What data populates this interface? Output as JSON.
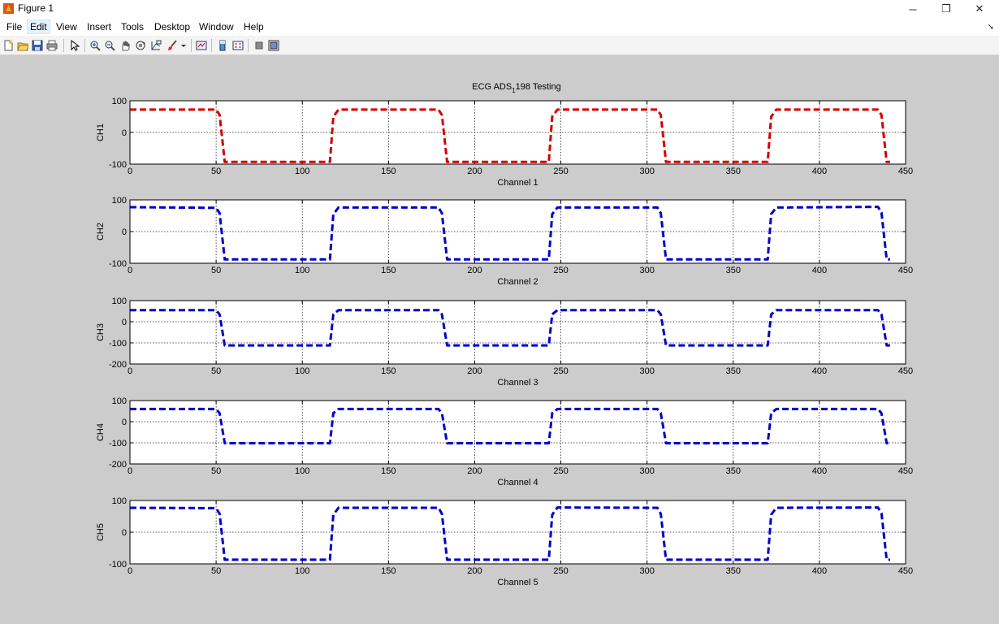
{
  "window": {
    "title": "Figure 1",
    "minimize": "─",
    "maximize": "❐",
    "close": "✕"
  },
  "menu": [
    "File",
    "Edit",
    "View",
    "Insert",
    "Tools",
    "Desktop",
    "Window",
    "Help"
  ],
  "menu_arrow": "➘",
  "toolbar": {
    "groups": [
      [
        "new-figure-icon",
        "open-file-icon",
        "save-icon",
        "print-icon"
      ],
      [
        "edit-plot-icon"
      ],
      [
        "zoom-in-icon",
        "zoom-out-icon",
        "pan-icon",
        "rotate-3d-icon",
        "data-cursor-icon",
        "brush-icon",
        "dropdown-arrow-icon"
      ],
      [
        "link-plot-icon"
      ],
      [
        "insert-colorbar-icon",
        "insert-legend-icon"
      ],
      [
        "hide-plot-tools-icon",
        "show-plot-tools-icon"
      ]
    ]
  },
  "figure": {
    "title_main": "ECG ADS",
    "title_sub": "1",
    "title_rest": "198 Testing"
  },
  "chart_data": [
    {
      "type": "line",
      "ylabel": "CH1",
      "xlabel": "Channel 1",
      "xlim": [
        0,
        450
      ],
      "ylim": [
        -100,
        100
      ],
      "xticks": [
        0,
        50,
        100,
        150,
        200,
        250,
        300,
        350,
        400,
        450
      ],
      "yticks": [
        100,
        0,
        -100
      ],
      "line_style": "dashed",
      "color": "#d40000",
      "grid": true,
      "series": [
        {
          "x": [
            0,
            50,
            52,
            55,
            116,
            118,
            121,
            179,
            181,
            184,
            243,
            245,
            248,
            306,
            308,
            311,
            370,
            372,
            375,
            434,
            436,
            439,
            441
          ],
          "y": [
            72,
            72,
            55,
            -93,
            -93,
            50,
            72,
            72,
            55,
            -93,
            -93,
            50,
            72,
            72,
            55,
            -93,
            -93,
            50,
            72,
            72,
            55,
            -93,
            -93
          ]
        }
      ]
    },
    {
      "type": "line",
      "ylabel": "CH2",
      "xlabel": "Channel 2",
      "xlim": [
        0,
        450
      ],
      "ylim": [
        -100,
        100
      ],
      "xticks": [
        0,
        50,
        100,
        150,
        200,
        250,
        300,
        350,
        400,
        450
      ],
      "yticks": [
        100,
        0,
        -100
      ],
      "line_style": "dashed",
      "color": "#0000c8",
      "grid": true,
      "series": [
        {
          "x": [
            0,
            50,
            52,
            55,
            116,
            118,
            121,
            179,
            181,
            184,
            243,
            245,
            248,
            306,
            308,
            311,
            370,
            372,
            375,
            434,
            436,
            439,
            441
          ],
          "y": [
            77,
            75,
            58,
            -88,
            -88,
            55,
            76,
            76,
            58,
            -88,
            -88,
            55,
            76,
            76,
            58,
            -88,
            -88,
            55,
            76,
            78,
            60,
            -88,
            -88
          ]
        }
      ]
    },
    {
      "type": "line",
      "ylabel": "CH3",
      "xlabel": "Channel 3",
      "xlim": [
        0,
        450
      ],
      "ylim": [
        -200,
        100
      ],
      "xticks": [
        0,
        50,
        100,
        150,
        200,
        250,
        300,
        350,
        400,
        450
      ],
      "yticks": [
        100,
        0,
        -100,
        -200
      ],
      "line_style": "dashed",
      "color": "#0000c8",
      "grid": true,
      "series": [
        {
          "x": [
            0,
            50,
            52,
            55,
            116,
            118,
            121,
            179,
            181,
            184,
            243,
            245,
            248,
            306,
            308,
            311,
            370,
            372,
            375,
            434,
            436,
            439,
            441
          ],
          "y": [
            55,
            55,
            35,
            -112,
            -112,
            35,
            55,
            55,
            35,
            -112,
            -112,
            35,
            55,
            55,
            35,
            -112,
            -112,
            35,
            55,
            55,
            35,
            -112,
            -112
          ]
        }
      ]
    },
    {
      "type": "line",
      "ylabel": "CH4",
      "xlabel": "Channel 4",
      "xlim": [
        0,
        450
      ],
      "ylim": [
        -200,
        100
      ],
      "xticks": [
        0,
        50,
        100,
        150,
        200,
        250,
        300,
        350,
        400,
        450
      ],
      "yticks": [
        100,
        0,
        -100,
        -200
      ],
      "line_style": "dashed",
      "color": "#0000c8",
      "grid": true,
      "series": [
        {
          "x": [
            0,
            50,
            52,
            55,
            116,
            118,
            121,
            179,
            181,
            184,
            243,
            245,
            248,
            306,
            308,
            311,
            370,
            372,
            375,
            434,
            436,
            439,
            441
          ],
          "y": [
            60,
            60,
            40,
            -102,
            -102,
            40,
            60,
            60,
            40,
            -102,
            -102,
            40,
            60,
            60,
            40,
            -102,
            -102,
            40,
            60,
            60,
            40,
            -102,
            -102
          ]
        }
      ]
    },
    {
      "type": "line",
      "ylabel": "CH5",
      "xlabel": "Channel 5",
      "xlim": [
        0,
        450
      ],
      "ylim": [
        -100,
        100
      ],
      "xticks": [
        0,
        50,
        100,
        150,
        200,
        250,
        300,
        350,
        400,
        450
      ],
      "yticks": [
        100,
        0,
        -100
      ],
      "line_style": "dashed",
      "color": "#0000c8",
      "grid": true,
      "series": [
        {
          "x": [
            0,
            50,
            52,
            55,
            116,
            118,
            121,
            179,
            181,
            184,
            243,
            245,
            248,
            306,
            308,
            311,
            370,
            372,
            375,
            434,
            436,
            439,
            441
          ],
          "y": [
            77,
            76,
            58,
            -87,
            -87,
            55,
            77,
            77,
            58,
            -87,
            -87,
            55,
            78,
            77,
            58,
            -87,
            -87,
            55,
            77,
            78,
            60,
            -87,
            -87
          ]
        }
      ]
    }
  ]
}
